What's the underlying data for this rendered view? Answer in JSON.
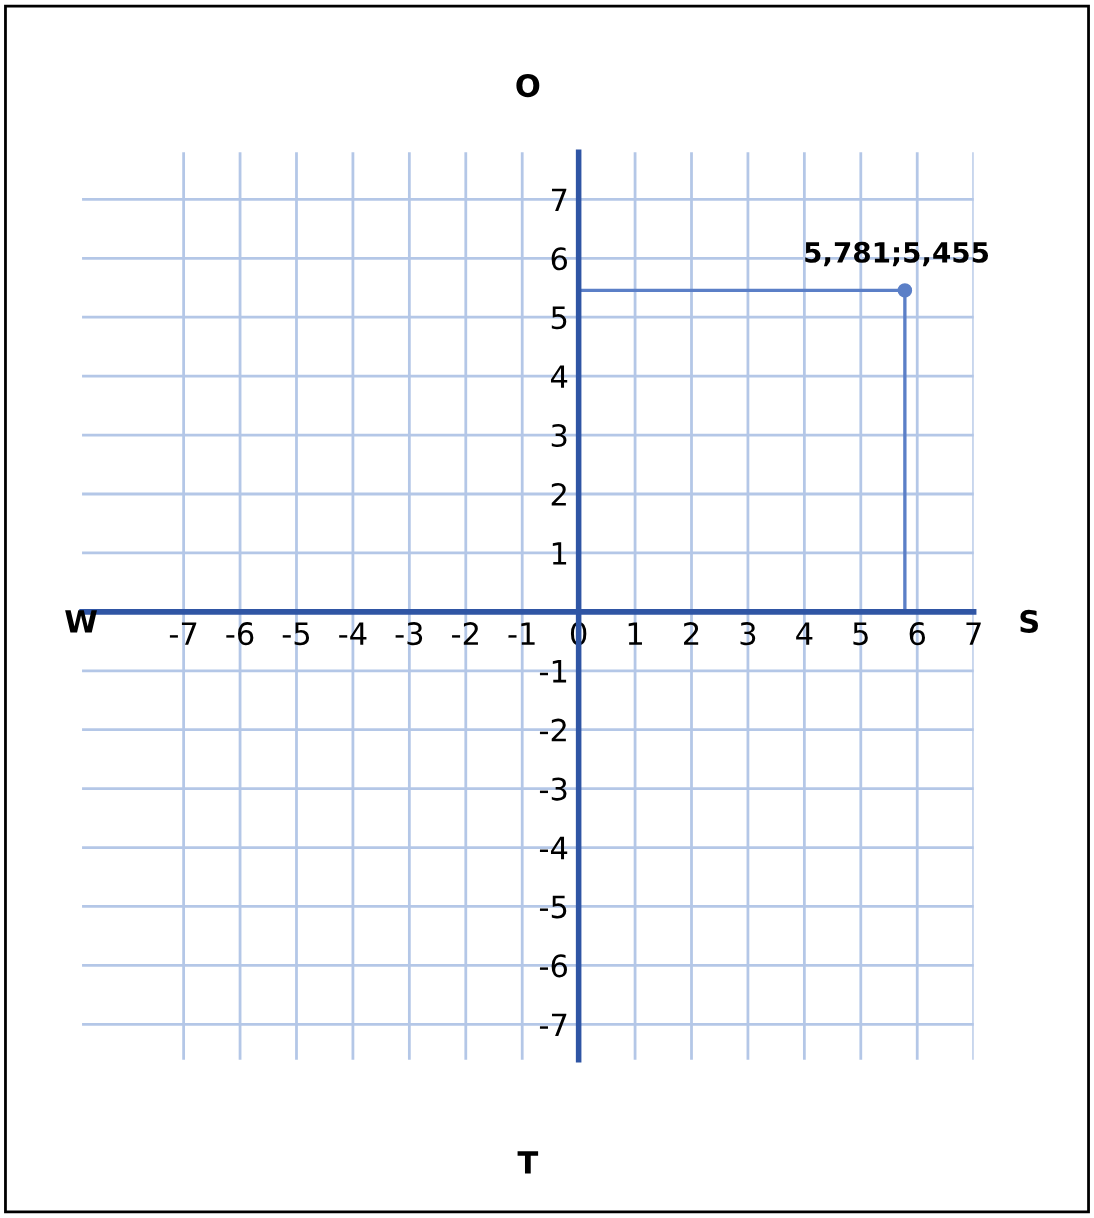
{
  "chart_data": {
    "type": "scatter",
    "title": "O",
    "xlabel": "T",
    "annotations": [
      "W",
      "S"
    ],
    "xlim": [
      -8.8,
      7
    ],
    "ylim": [
      -7.6,
      7.8
    ],
    "xticks": [
      -7,
      -6,
      -5,
      -4,
      -3,
      -2,
      -1,
      0,
      1,
      2,
      3,
      4,
      5,
      6,
      7
    ],
    "yticks": [
      -7,
      -6,
      -5,
      -4,
      -3,
      -2,
      -1,
      1,
      2,
      3,
      4,
      5,
      6,
      7
    ],
    "grid": true,
    "marker": "circle",
    "series": [
      {
        "color": "#5b7fc7",
        "x": [
          5.781
        ],
        "values": [
          5.455
        ],
        "value_labels": [
          "5,781;5,455"
        ],
        "errors": [
          [
            0,
            5.455
          ]
        ],
        "xerrors": [
          [
            0,
            5.781
          ]
        ]
      }
    ]
  }
}
